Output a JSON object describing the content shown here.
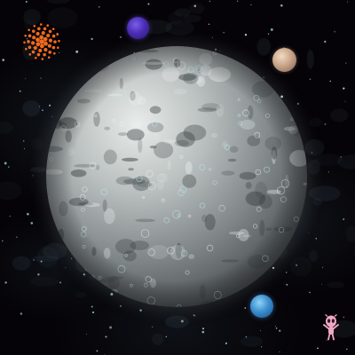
{
  "scene": {
    "background_color": "#050307",
    "moon": {
      "icon": "cratered-moon",
      "colors": {
        "light": "#e6ebe9",
        "mid": "#9aa3a3",
        "dark": "#4a4f52",
        "highlight": "#bfe6ee"
      }
    },
    "sun": {
      "icon": "orange-sun",
      "color": "#f06a1c"
    },
    "planets": [
      {
        "name": "purple-planet",
        "color": "#5a3fd0"
      },
      {
        "name": "tan-planet",
        "color": "#c9a488"
      },
      {
        "name": "blue-planet",
        "color": "#3c8fcf"
      }
    ],
    "alien": {
      "icon": "pink-alien",
      "color": "#f2a6c6"
    }
  }
}
